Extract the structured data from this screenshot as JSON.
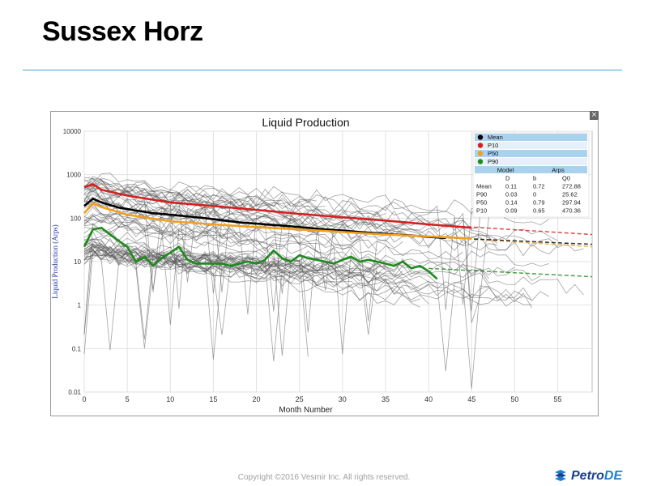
{
  "slide": {
    "title": "Sussex Horz",
    "footer": "Copyright ©2016 Vesmir Inc. All rights reserved.",
    "logo_text_main": "Petro",
    "logo_text_accent": "DE",
    "close_glyph": "×"
  },
  "chart_data": {
    "type": "line",
    "title": "Liquid Production",
    "xlabel": "Month Number",
    "ylabel": "Liquid Production (Arps)",
    "x_scale": "linear",
    "y_scale": "log",
    "xlim": [
      0,
      59
    ],
    "ylim": [
      0.01,
      10000
    ],
    "x_ticks": [
      0,
      5,
      10,
      15,
      20,
      25,
      30,
      35,
      40,
      45,
      50,
      55
    ],
    "y_ticks": [
      0.01,
      0.1,
      1,
      10,
      100,
      1000,
      10000
    ],
    "y_tick_labels": [
      "0.01",
      "0.1",
      "1",
      "10",
      "100",
      "1000",
      "10000"
    ],
    "grid": true,
    "legend_placement": "top-right",
    "series": [
      {
        "name": "Mean",
        "color": "#000000",
        "x": [
          0,
          1,
          2,
          4,
          6,
          8,
          10,
          12,
          14,
          16,
          18,
          20,
          22,
          24,
          26,
          28,
          30,
          32,
          34,
          36,
          38,
          40,
          42
        ],
        "y": [
          190,
          280,
          230,
          175,
          150,
          130,
          120,
          110,
          100,
          90,
          80,
          75,
          70,
          65,
          60,
          55,
          52,
          48,
          45,
          42,
          40,
          37,
          35
        ]
      },
      {
        "name": "P10",
        "color": "#d42020",
        "x": [
          0,
          1,
          2,
          5,
          10,
          15,
          20,
          25,
          30,
          35,
          40,
          45
        ],
        "y": [
          520,
          600,
          450,
          330,
          230,
          190,
          155,
          125,
          105,
          88,
          72,
          60
        ]
      },
      {
        "name": "P50",
        "color": "#f0a020",
        "x": [
          0,
          1,
          2,
          5,
          10,
          15,
          20,
          25,
          30,
          35,
          40,
          45
        ],
        "y": [
          130,
          220,
          180,
          120,
          85,
          72,
          62,
          55,
          48,
          42,
          38,
          34
        ]
      },
      {
        "name": "P90",
        "color": "#1d8a1d",
        "x": [
          0,
          1,
          2,
          3,
          4,
          5,
          6,
          7,
          8,
          9,
          10,
          11,
          12,
          13,
          14,
          15,
          16,
          17,
          18,
          19,
          20,
          21,
          22,
          23,
          24,
          25,
          26,
          27,
          28,
          29,
          30,
          31,
          32,
          33,
          34,
          35,
          36,
          37,
          38,
          39,
          40,
          41
        ],
        "y": [
          22,
          55,
          60,
          42,
          30,
          22,
          10,
          13,
          8,
          12,
          16,
          22,
          11,
          9,
          9,
          9,
          9,
          8,
          9,
          10,
          9,
          11,
          18,
          12,
          10,
          14,
          12,
          11,
          10,
          9,
          11,
          13,
          10,
          11,
          10,
          9,
          8,
          10,
          7,
          8,
          6,
          4
        ]
      }
    ],
    "forecast": [
      {
        "name": "P10",
        "color": "#d42020",
        "x": [
          40,
          59
        ],
        "y": [
          72,
          42
        ]
      },
      {
        "name": "P50",
        "color": "#f0a020",
        "x": [
          40,
          59
        ],
        "y": [
          38,
          22
        ]
      },
      {
        "name": "Mean",
        "color": "#000000",
        "x": [
          40,
          59
        ],
        "y": [
          37,
          25
        ]
      },
      {
        "name": "P90",
        "color": "#1d8a1d",
        "x": [
          40,
          59
        ],
        "y": [
          7,
          4.5
        ]
      }
    ],
    "legend": [
      "Mean",
      "P10",
      "P50",
      "P90"
    ],
    "model_table": {
      "header": [
        "Model",
        "Arps"
      ],
      "columns": [
        "",
        "D",
        "b",
        "Q0"
      ],
      "rows": [
        [
          "Mean",
          "0.11",
          "0.72",
          "272.88"
        ],
        [
          "P90",
          "0.03",
          "0",
          "25.62"
        ],
        [
          "P50",
          "0.14",
          "0.79",
          "297.94"
        ],
        [
          "P10",
          "0.09",
          "0.65",
          "470.36"
        ]
      ]
    }
  }
}
